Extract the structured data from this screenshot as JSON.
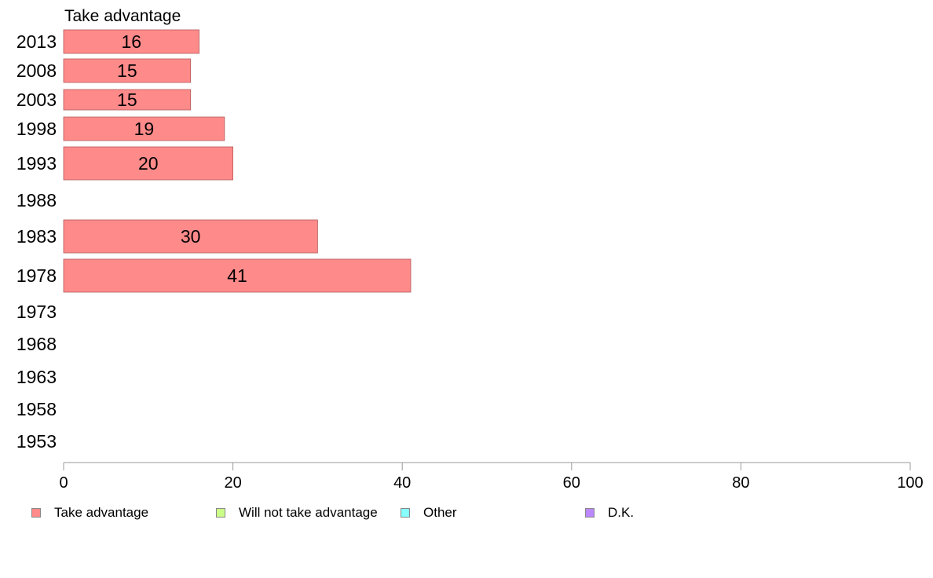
{
  "chart_data": {
    "type": "bar",
    "orientation": "horizontal",
    "title": "",
    "panel_title": "Take advantage",
    "xlabel": "",
    "ylabel": "",
    "xlim": [
      0,
      100
    ],
    "x_ticks": [
      "0",
      "20",
      "40",
      "60",
      "80",
      "100"
    ],
    "categories": [
      "2013",
      "2008",
      "2003",
      "1998",
      "1993",
      "1988",
      "1983",
      "1978",
      "1973",
      "1968",
      "1963",
      "1958",
      "1953"
    ],
    "series": [
      {
        "name": "Take advantage",
        "color": "#ff8a8a",
        "values": [
          16,
          15,
          15,
          19,
          20,
          null,
          30,
          41,
          null,
          null,
          null,
          null,
          null
        ],
        "labels": [
          "16",
          "15",
          "15",
          "19",
          "20",
          "",
          "30",
          "41",
          "",
          "",
          "",
          "",
          ""
        ]
      }
    ],
    "legend": {
      "position": "bottom",
      "items": [
        {
          "label": "Take advantage",
          "color": "#ff8a8a"
        },
        {
          "label": "Will not take advantage",
          "color": "#ccff88"
        },
        {
          "label": "Other",
          "color": "#88ffff"
        },
        {
          "label": "D.K.",
          "color": "#bb88ff"
        }
      ]
    },
    "grid": false
  }
}
